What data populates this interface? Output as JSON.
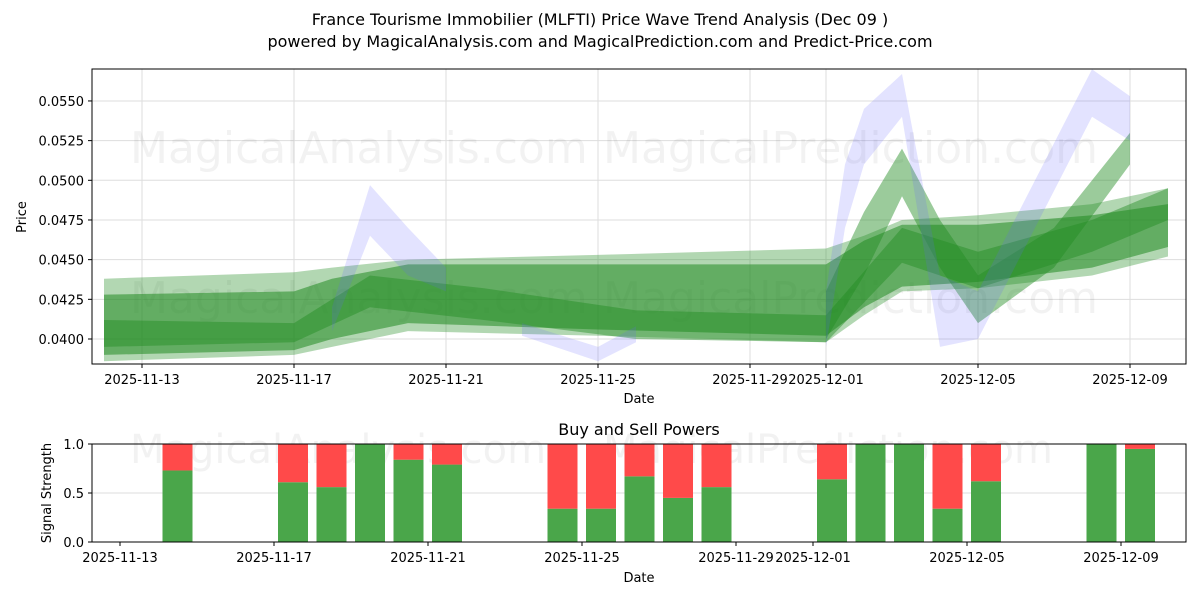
{
  "header": {
    "title": "France Tourisme Immobilier (MLFTI) Price Wave Trend Analysis (Dec 09 )",
    "subtitle": "powered by MagicalAnalysis.com and MagicalPrediction.com and Predict-Price.com"
  },
  "watermarks": [
    "MagicalAnalysis.com",
    "MagicalPrediction.com"
  ],
  "colors": {
    "band_green": "#228B22",
    "band_blue": "#6666ff",
    "buy": "#4aa64a",
    "sell": "#ff4a4a",
    "grid": "#dddddd"
  },
  "chart_data": [
    {
      "type": "area",
      "title": "France Tourisme Immobilier (MLFTI) Price Wave Trend Analysis (Dec 09 )",
      "xlabel": "Date",
      "ylabel": "Price",
      "x_ticks": [
        "2025-11-13",
        "2025-11-17",
        "2025-11-21",
        "2025-11-25",
        "2025-11-29",
        "2025-12-01",
        "2025-12-05",
        "2025-12-09"
      ],
      "y_ticks": [
        "0.0400",
        "0.0425",
        "0.0450",
        "0.0475",
        "0.0500",
        "0.0525",
        "0.0550"
      ],
      "ylim": [
        0.0384,
        0.057
      ],
      "xlim": [
        "2025-11-11.7",
        "2025-12-10.3"
      ],
      "grid": true,
      "legend": null,
      "series": [
        {
          "name": "green wave band (wide)",
          "color": "green",
          "dates": [
            "2025-11-12",
            "2025-11-17",
            "2025-11-18",
            "2025-11-20",
            "2025-11-25",
            "2025-12-01",
            "2025-12-02",
            "2025-12-03",
            "2025-12-05",
            "2025-12-08",
            "2025-12-10"
          ],
          "upper": [
            0.0438,
            0.0442,
            0.0445,
            0.045,
            0.0453,
            0.0457,
            0.0465,
            0.0475,
            0.0478,
            0.0485,
            0.0495
          ],
          "lower": [
            0.0386,
            0.039,
            0.0395,
            0.0405,
            0.0402,
            0.0398,
            0.0415,
            0.043,
            0.0432,
            0.044,
            0.0452
          ]
        },
        {
          "name": "green wave band (core)",
          "color": "green",
          "dates": [
            "2025-11-12",
            "2025-11-17",
            "2025-11-18",
            "2025-11-20",
            "2025-11-25",
            "2025-12-01",
            "2025-12-02",
            "2025-12-03",
            "2025-12-05",
            "2025-12-08",
            "2025-12-10"
          ],
          "upper": [
            0.0428,
            0.043,
            0.0438,
            0.0447,
            0.0447,
            0.0447,
            0.0462,
            0.0472,
            0.0472,
            0.0478,
            0.0485
          ],
          "lower": [
            0.039,
            0.0393,
            0.04,
            0.041,
            0.0406,
            0.0402,
            0.042,
            0.0433,
            0.0436,
            0.0445,
            0.0458
          ]
        },
        {
          "name": "green wave band (thin)",
          "color": "green",
          "dates": [
            "2025-11-12",
            "2025-11-17",
            "2025-11-19",
            "2025-11-22",
            "2025-11-26",
            "2025-12-01",
            "2025-12-03",
            "2025-12-05",
            "2025-12-08",
            "2025-12-10"
          ],
          "upper": [
            0.0412,
            0.041,
            0.044,
            0.0432,
            0.0418,
            0.0415,
            0.047,
            0.0455,
            0.0475,
            0.0495
          ],
          "lower": [
            0.0395,
            0.0398,
            0.042,
            0.0412,
            0.04,
            0.0398,
            0.0448,
            0.0432,
            0.0455,
            0.0475
          ]
        },
        {
          "name": "green spike band",
          "color": "green",
          "dates": [
            "2025-12-01",
            "2025-12-02",
            "2025-12-03",
            "2025-12-04",
            "2025-12-05",
            "2025-12-07",
            "2025-12-09"
          ],
          "upper": [
            0.043,
            0.048,
            0.052,
            0.0475,
            0.044,
            0.047,
            0.053
          ],
          "lower": [
            0.04,
            0.044,
            0.049,
            0.0445,
            0.041,
            0.0445,
            0.051
          ]
        },
        {
          "name": "blue wave band A",
          "color": "blue",
          "dates": [
            "2025-11-18",
            "2025-11-19",
            "2025-11-20",
            "2025-11-21"
          ],
          "upper": [
            0.042,
            0.0497,
            0.047,
            0.0445
          ],
          "lower": [
            0.0405,
            0.0465,
            0.044,
            0.043
          ]
        },
        {
          "name": "blue wave band B",
          "color": "blue",
          "dates": [
            "2025-11-23",
            "2025-11-25",
            "2025-11-26"
          ],
          "upper": [
            0.041,
            0.0395,
            0.0408
          ],
          "lower": [
            0.0402,
            0.0386,
            0.0398
          ]
        },
        {
          "name": "blue wave band C",
          "color": "blue",
          "dates": [
            "2025-12-01",
            "2025-12-01.5",
            "2025-12-02",
            "2025-12-03",
            "2025-12-04",
            "2025-12-05",
            "2025-12-08",
            "2025-12-09"
          ],
          "upper": [
            0.043,
            0.051,
            0.0545,
            0.0567,
            0.044,
            0.043,
            0.057,
            0.0553
          ],
          "lower": [
            0.0395,
            0.047,
            0.051,
            0.054,
            0.0395,
            0.04,
            0.054,
            0.0525
          ]
        }
      ]
    },
    {
      "type": "bar",
      "title": "Buy and Sell Powers",
      "xlabel": "Date",
      "ylabel": "Signal Strength",
      "x_ticks": [
        "2025-11-13",
        "2025-11-17",
        "2025-11-21",
        "2025-11-25",
        "2025-11-29",
        "2025-12-01",
        "2025-12-05",
        "2025-12-09"
      ],
      "y_ticks": [
        "0.0",
        "0.5",
        "1.0"
      ],
      "ylim": [
        0,
        1
      ],
      "stacked": true,
      "categories": [
        "2025-11-14",
        "2025-11-17",
        "2025-11-18",
        "2025-11-19",
        "2025-11-20",
        "2025-11-21",
        "2025-11-24",
        "2025-11-25",
        "2025-11-26",
        "2025-11-27",
        "2025-11-28",
        "2025-12-01",
        "2025-12-02",
        "2025-12-03",
        "2025-12-04",
        "2025-12-05",
        "2025-12-08",
        "2025-12-09"
      ],
      "series": [
        {
          "name": "Buy",
          "color": "#4aa64a",
          "values": [
            0.73,
            0.61,
            0.56,
            1.0,
            0.84,
            0.79,
            0.34,
            0.34,
            0.67,
            0.45,
            0.56,
            0.64,
            1.0,
            1.0,
            0.34,
            0.62,
            1.0,
            0.95
          ]
        },
        {
          "name": "Sell",
          "color": "#ff4a4a",
          "values": [
            0.27,
            0.39,
            0.44,
            0.0,
            0.16,
            0.21,
            0.66,
            0.66,
            0.33,
            0.55,
            0.44,
            0.36,
            0.0,
            0.0,
            0.66,
            0.38,
            0.0,
            0.05
          ]
        }
      ]
    }
  ]
}
